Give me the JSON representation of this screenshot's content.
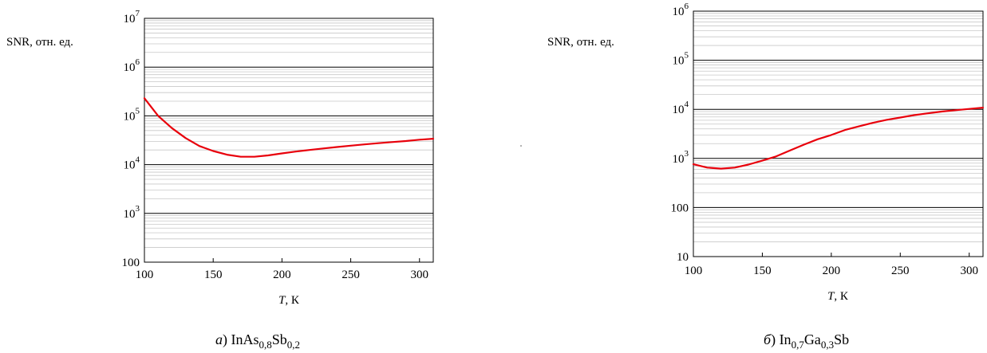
{
  "chart_data": [
    {
      "type": "line",
      "ylabel": "SNR, отн. ед.",
      "xlabel_italic": "T",
      "xlabel_rest": ", К",
      "xlim": [
        100,
        310
      ],
      "x_ticks": [
        "100",
        "150",
        "200",
        "250",
        "300"
      ],
      "x_tick_values": [
        100,
        150,
        200,
        250,
        300
      ],
      "ylim": [
        100,
        10000000
      ],
      "y_scale": "log",
      "y_ticks": [
        {
          "value": 10000000,
          "base": "10",
          "exp": "7"
        },
        {
          "value": 1000000,
          "base": "10",
          "exp": "6"
        },
        {
          "value": 100000,
          "base": "10",
          "exp": "5"
        },
        {
          "value": 10000,
          "base": "10",
          "exp": "4"
        },
        {
          "value": 1000,
          "base": "10",
          "exp": "3"
        },
        {
          "value": 100,
          "base": "100",
          "exp": ""
        }
      ],
      "grid": true,
      "color": "#e8000b",
      "x": [
        100,
        110,
        120,
        130,
        140,
        150,
        160,
        170,
        180,
        190,
        200,
        210,
        220,
        230,
        240,
        250,
        260,
        270,
        280,
        290,
        300,
        310
      ],
      "y": [
        230000,
        100000,
        56000,
        35000,
        24000,
        19000,
        16000,
        14500,
        14500,
        15500,
        17000,
        18500,
        20000,
        21500,
        23000,
        24500,
        26000,
        27500,
        29000,
        30500,
        32500,
        34000
      ],
      "caption_letter": "а",
      "caption_paren": ") ",
      "caption_parts": [
        {
          "t": "InAs",
          "sub": false
        },
        {
          "t": "0,8",
          "sub": true
        },
        {
          "t": "Sb",
          "sub": false
        },
        {
          "t": "0,2",
          "sub": true
        }
      ]
    },
    {
      "type": "line",
      "ylabel": "SNR, отн. ед.",
      "xlabel_italic": "T",
      "xlabel_rest": ", К",
      "xlim": [
        100,
        310
      ],
      "x_ticks": [
        "100",
        "150",
        "200",
        "250",
        "300"
      ],
      "x_tick_values": [
        100,
        150,
        200,
        250,
        300
      ],
      "ylim": [
        10,
        1000000
      ],
      "y_scale": "log",
      "y_ticks": [
        {
          "value": 1000000,
          "base": "10",
          "exp": "6"
        },
        {
          "value": 100000,
          "base": "10",
          "exp": "5"
        },
        {
          "value": 10000,
          "base": "10",
          "exp": "4"
        },
        {
          "value": 1000,
          "base": "10",
          "exp": "3"
        },
        {
          "value": 100,
          "base": "100",
          "exp": ""
        },
        {
          "value": 10,
          "base": "10",
          "exp": ""
        }
      ],
      "grid": true,
      "color": "#e8000b",
      "x": [
        100,
        110,
        120,
        130,
        140,
        150,
        160,
        170,
        180,
        190,
        200,
        210,
        220,
        230,
        240,
        250,
        260,
        270,
        280,
        290,
        300,
        310
      ],
      "y": [
        760,
        650,
        620,
        650,
        750,
        900,
        1100,
        1450,
        1900,
        2450,
        3000,
        3800,
        4500,
        5300,
        6100,
        6800,
        7600,
        8300,
        9000,
        9600,
        10200,
        10800
      ],
      "caption_letter": "б",
      "caption_paren": ") ",
      "caption_parts": [
        {
          "t": "In",
          "sub": false
        },
        {
          "t": "0,7",
          "sub": true
        },
        {
          "t": "Ga",
          "sub": false
        },
        {
          "t": "0,3",
          "sub": true
        },
        {
          "t": "Sb",
          "sub": false
        }
      ]
    }
  ]
}
